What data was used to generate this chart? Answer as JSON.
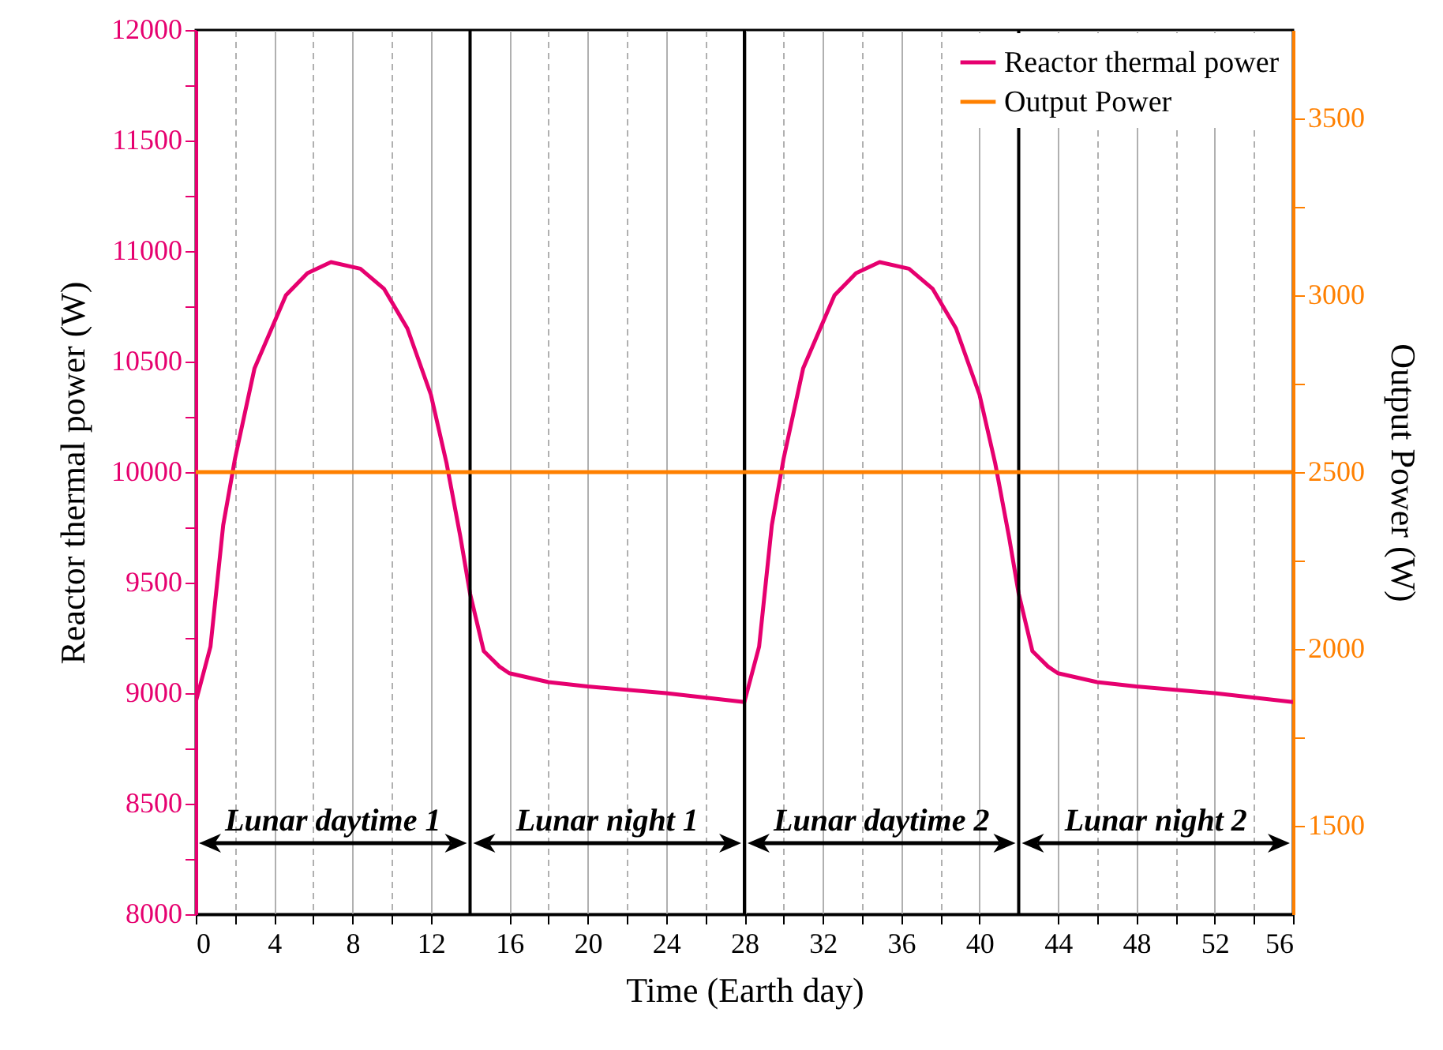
{
  "chart_data": {
    "type": "line",
    "xlabel": "Time (Earth day)",
    "ylabel": "Reactor thermal power (W)",
    "y2label": "Output Power (W)",
    "xlim": [
      0,
      56
    ],
    "ylim": [
      8000,
      12000
    ],
    "y2lim": [
      1250,
      3750
    ],
    "xticks": [
      0,
      {
        "value": 2,
        "label": null
      },
      4,
      {
        "value": 6,
        "label": null
      },
      8,
      {
        "value": 10,
        "label": null
      },
      12,
      16,
      {
        "value": 18,
        "label": null
      },
      20,
      {
        "value": 22,
        "label": null
      },
      24,
      {
        "value": 26,
        "label": null
      },
      28,
      {
        "value": 30,
        "label": null
      },
      32,
      {
        "value": 34,
        "label": null
      },
      36,
      {
        "value": 38,
        "label": null
      },
      40,
      44,
      {
        "value": 46,
        "label": null
      },
      48,
      {
        "value": 50,
        "label": null
      },
      52,
      {
        "value": 54,
        "label": null
      },
      56
    ],
    "yticks": [
      8000,
      {
        "value": 8250,
        "label": null
      },
      8500,
      {
        "value": 8750,
        "label": null
      },
      9000,
      {
        "value": 9250,
        "label": null
      },
      9500,
      {
        "value": 9750,
        "label": null
      },
      10000,
      {
        "value": 10250,
        "label": null
      },
      10500,
      {
        "value": 10750,
        "label": null
      },
      11000,
      {
        "value": 11250,
        "label": null
      },
      11500,
      {
        "value": 11750,
        "label": null
      },
      12000
    ],
    "y2ticks": [
      1500,
      {
        "value": 1750,
        "label": null
      },
      2000,
      {
        "value": 2250,
        "label": null
      },
      2500,
      {
        "value": 2750,
        "label": null
      },
      3000,
      {
        "value": 3250,
        "label": null
      },
      3500
    ],
    "grid": "x",
    "legend": "top right",
    "line_style": "solid",
    "series": [
      {
        "name": "Reactor thermal power",
        "color": "#e6006f",
        "x": [
          0,
          0.75,
          1.4,
          2,
          3,
          4.6,
          5.7,
          6.9,
          8.4,
          9.6,
          10.8,
          12,
          12.8,
          13.5,
          14,
          14.7,
          15.5,
          16,
          18,
          20,
          24,
          28,
          28.75,
          29.4,
          30,
          31,
          32.6,
          33.7,
          34.9,
          36.4,
          37.6,
          38.8,
          40,
          40.8,
          41.5,
          42,
          42.7,
          43.5,
          44,
          46,
          48,
          52,
          56
        ],
        "values": [
          8960,
          9210,
          9760,
          10060,
          10470,
          10800,
          10900,
          10950,
          10920,
          10830,
          10650,
          10350,
          10040,
          9710,
          9450,
          9190,
          9120,
          9090,
          9050,
          9030,
          9000,
          8960,
          9210,
          9760,
          10060,
          10470,
          10800,
          10900,
          10950,
          10920,
          10830,
          10650,
          10350,
          10040,
          9710,
          9450,
          9190,
          9120,
          9090,
          9050,
          9030,
          9000,
          8960
        ]
      },
      {
        "name": "Output Power",
        "color": "#ff8000",
        "axis": "y2",
        "x": [
          0,
          14,
          28,
          42,
          56
        ],
        "values": [
          2500,
          2500,
          2500,
          2500,
          2500
        ]
      }
    ],
    "ref_lines": [
      {
        "axis": "x",
        "value": 14,
        "color": "#000000"
      },
      {
        "axis": "x",
        "value": 28,
        "color": "#000000"
      },
      {
        "axis": "x",
        "value": 42,
        "color": "#000000"
      }
    ],
    "annotations": [
      "Lunar daytime 1",
      "Lunar night 1",
      "Lunar daytime 2",
      "Lunar night 2"
    ]
  }
}
